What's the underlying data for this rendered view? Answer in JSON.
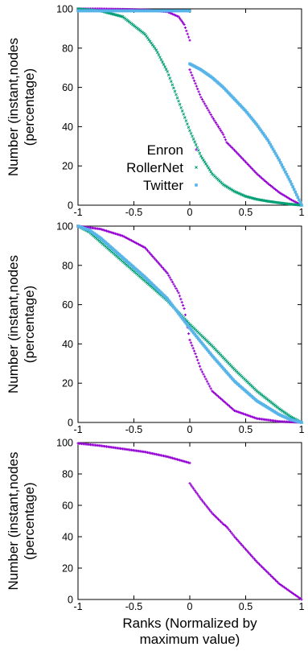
{
  "chart_data": [
    {
      "type": "scatter",
      "ylabel_line1": "Number (instant,nodes",
      "ylabel_line2": "(percentage)",
      "xlabel_line1": "",
      "xlabel_line2": "",
      "xlim": [
        -1,
        1
      ],
      "ylim": [
        0,
        100
      ],
      "xticks": [
        "-1",
        "-0.5",
        "0",
        "0.5",
        "1"
      ],
      "yticks": [
        "0",
        "20",
        "40",
        "60",
        "80",
        "100"
      ],
      "legend_position": "bottom-left",
      "series": [
        {
          "name": "Enron",
          "color": "#9400d3",
          "marker": "plus",
          "x": [
            -1,
            -0.8,
            -0.6,
            -0.4,
            -0.2,
            -0.1,
            -0.05,
            0,
            0,
            0.05,
            0.1,
            0.2,
            0.3,
            0.33,
            0.4,
            0.5,
            0.6,
            0.7,
            0.8,
            0.9,
            1
          ],
          "y": [
            100,
            100,
            99.8,
            99.5,
            98.5,
            96,
            92,
            84,
            69,
            62,
            55,
            45,
            36,
            32,
            28,
            22,
            16,
            11,
            6.5,
            3,
            0
          ]
        },
        {
          "name": "RollerNet",
          "color": "#009e73",
          "marker": "x",
          "x": [
            -1,
            -0.8,
            -0.6,
            -0.4,
            -0.3,
            -0.2,
            -0.1,
            0,
            0.1,
            0.2,
            0.3,
            0.4,
            0.5,
            0.6,
            0.7,
            0.8,
            0.9,
            1
          ],
          "y": [
            100,
            99,
            96,
            87,
            79,
            68,
            53,
            38,
            25,
            16,
            10.5,
            7,
            4.5,
            3,
            2,
            1.2,
            0.5,
            0
          ]
        },
        {
          "name": "Twitter",
          "color": "#56b4e9",
          "marker": "square",
          "x": [
            -1,
            -0.5,
            0,
            0,
            0.1,
            0.2,
            0.3,
            0.4,
            0.5,
            0.6,
            0.7,
            0.8,
            0.9,
            1
          ],
          "y": [
            99,
            99,
            99,
            72,
            69,
            65,
            60,
            54,
            48,
            41,
            33,
            23,
            12,
            0
          ]
        }
      ]
    },
    {
      "type": "scatter",
      "ylabel_line1": "Number (instant,nodes",
      "ylabel_line2": "(percentage)",
      "xlabel_line1": "",
      "xlabel_line2": "",
      "xlim": [
        -1,
        1
      ],
      "ylim": [
        0,
        100
      ],
      "xticks": [
        "-1",
        "-0.5",
        "0",
        "0.5",
        "1"
      ],
      "yticks": [
        "0",
        "20",
        "40",
        "60",
        "80",
        "100"
      ],
      "series": [
        {
          "name": "Enron",
          "color": "#9400d3",
          "marker": "plus",
          "x": [
            -1,
            -0.8,
            -0.6,
            -0.4,
            -0.2,
            -0.1,
            -0.05,
            0,
            0.05,
            0.1,
            0.2,
            0.4,
            0.6,
            0.8,
            1
          ],
          "y": [
            100,
            98.5,
            95,
            89,
            76,
            66,
            58,
            42,
            35,
            27,
            16,
            6,
            2,
            0.5,
            0
          ]
        },
        {
          "name": "RollerNet",
          "color": "#009e73",
          "marker": "x",
          "x": [
            -1,
            -0.9,
            -0.8,
            -0.6,
            -0.4,
            -0.2,
            0,
            0.2,
            0.4,
            0.6,
            0.8,
            0.9,
            1
          ],
          "y": [
            100,
            97,
            92,
            82,
            72,
            62,
            50,
            39,
            27,
            16,
            7,
            3,
            0
          ]
        },
        {
          "name": "Twitter",
          "color": "#56b4e9",
          "marker": "square",
          "x": [
            -1,
            -0.9,
            -0.8,
            -0.6,
            -0.4,
            -0.2,
            0,
            0.2,
            0.4,
            0.6,
            0.8,
            0.9,
            1
          ],
          "y": [
            100,
            98,
            94,
            84,
            74,
            63,
            48,
            34,
            21,
            11,
            4,
            1.5,
            0
          ]
        }
      ]
    },
    {
      "type": "scatter",
      "ylabel_line1": "Number (instant,nodes",
      "ylabel_line2": "(percentage)",
      "xlabel_line1": "Ranks (Normalized by",
      "xlabel_line2": "maximum value)",
      "xlim": [
        -1,
        1
      ],
      "ylim": [
        0,
        100
      ],
      "xticks": [
        "-1",
        "-0.5",
        "0",
        "0.5",
        "1"
      ],
      "yticks": [
        "0",
        "20",
        "40",
        "60",
        "80",
        "100"
      ],
      "series": [
        {
          "name": "Enron",
          "color": "#9400d3",
          "marker": "plus",
          "x": [
            -1,
            -0.8,
            -0.6,
            -0.4,
            -0.2,
            0,
            0,
            0.1,
            0.2,
            0.3,
            0.32,
            0.34,
            0.4,
            0.5,
            0.6,
            0.7,
            0.8,
            0.9,
            1
          ],
          "y": [
            99.5,
            98,
            96,
            94,
            91,
            87,
            74,
            64,
            55,
            48,
            47,
            45.5,
            40,
            32,
            24,
            17,
            10,
            5,
            0
          ]
        }
      ]
    }
  ]
}
